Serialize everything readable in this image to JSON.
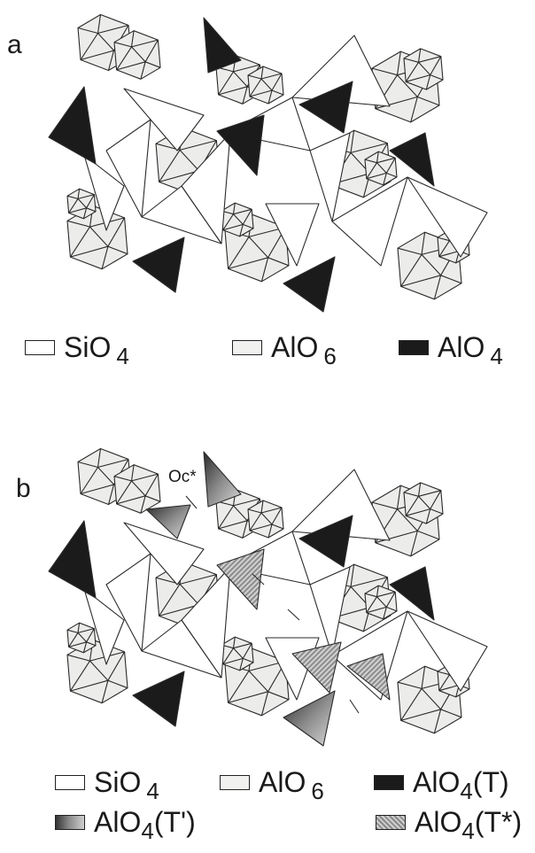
{
  "panel_a": {
    "label": "a",
    "legend": [
      {
        "key": "sio4",
        "text": "SiO",
        "sub": "4",
        "suffix": ""
      },
      {
        "key": "alo6",
        "text": "AlO",
        "sub": "6",
        "suffix": ""
      },
      {
        "key": "alo4",
        "text": "AlO",
        "sub": "4",
        "suffix": ""
      }
    ]
  },
  "panel_b": {
    "label": "b",
    "annotation": "Oc*",
    "legend": [
      {
        "key": "sio4",
        "text": "SiO",
        "sub": "4",
        "suffix": ""
      },
      {
        "key": "alo6",
        "text": "AlO",
        "sub": "6",
        "suffix": ""
      },
      {
        "key": "alo4t",
        "text": "AlO",
        "sub": "4",
        "suffix": "(T)"
      },
      {
        "key": "alo4tp",
        "text": "AlO",
        "sub": "4",
        "suffix": "(T')"
      },
      {
        "key": "alo4ts",
        "text": "AlO",
        "sub": "4",
        "suffix": "(T*)"
      }
    ]
  },
  "colors": {
    "alo6_fill": "#ececea",
    "alo4_fill": "#1b1b1b",
    "sio4_fill": "#ffffff",
    "line": "#2a2a2a"
  }
}
